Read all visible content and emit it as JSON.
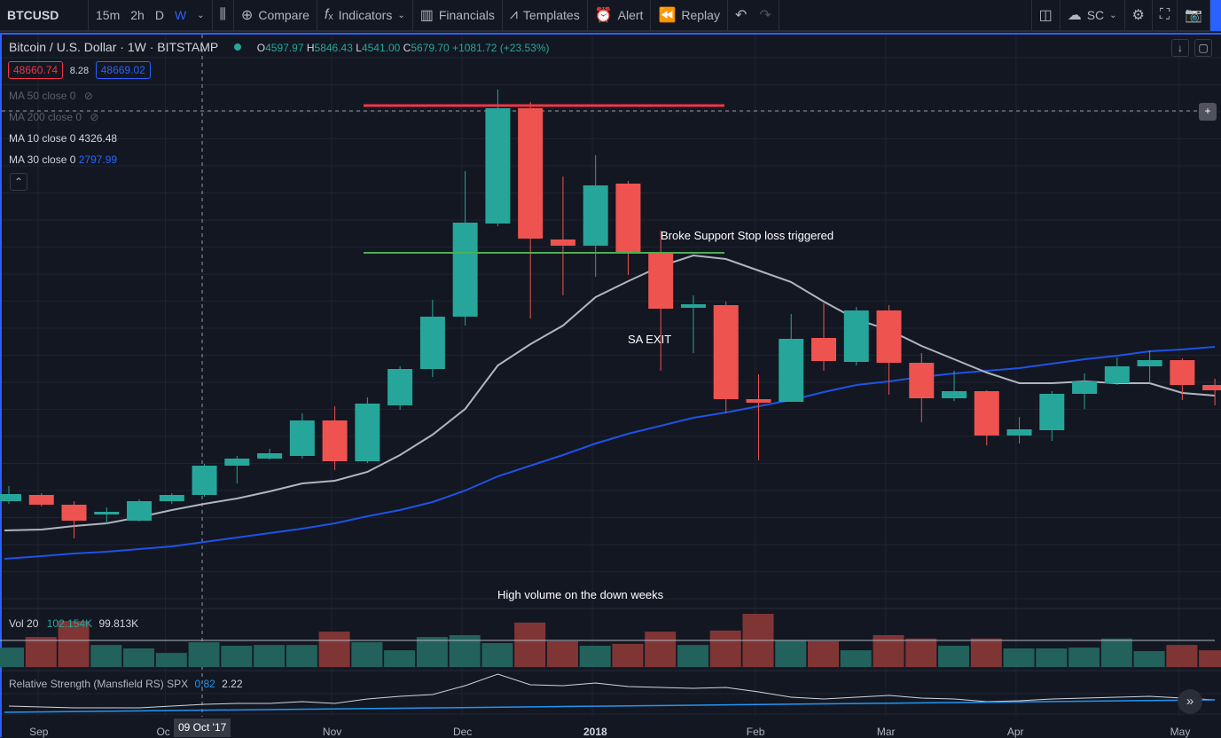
{
  "toolbar": {
    "symbol": "BTCUSD",
    "intervals": [
      "15m",
      "2h",
      "D",
      "W"
    ],
    "active_interval": "W",
    "compare": "Compare",
    "indicators": "Indicators",
    "financials": "Financials",
    "templates": "Templates",
    "alert": "Alert",
    "replay": "Replay",
    "layout_name": "SC"
  },
  "header": {
    "title": "Bitcoin / U.S. Dollar · 1W · BITSTAMP",
    "o_label": "O",
    "o": "4597.97",
    "h_label": "H",
    "h": "5846.43",
    "l_label": "L",
    "l": "4541.00",
    "c_label": "C",
    "c": "5679.70",
    "change": "+1081.72 (+23.53%)",
    "bid": "48660.74",
    "spread": "8.28",
    "ask": "48669.02"
  },
  "indicators": [
    {
      "label": "MA 50 close 0",
      "hidden": true
    },
    {
      "label": "MA 200 close 0",
      "hidden": true
    },
    {
      "label": "MA 10 close 0",
      "value": "4326.48"
    },
    {
      "label": "MA 30 close 0",
      "value": "2797.99"
    }
  ],
  "volume": {
    "label": "Vol 20",
    "value": "102.154K",
    "ma": "99.813K"
  },
  "rs": {
    "label": "Relative Strength (Mansfield RS) SPX",
    "value": "0.82",
    "ma": "2.22"
  },
  "annotations": {
    "support": "Broke Support Stop loss triggered",
    "exit": "SA EXIT",
    "volume_note": "High volume on the down weeks"
  },
  "crosshair": {
    "date": "09 Oct '17"
  },
  "colors": {
    "up": "#26a69a",
    "down": "#ef5350",
    "ma10": "#b2b5be",
    "ma30": "#1e53e5",
    "resistance": "#f23645",
    "support": "#4caf50"
  },
  "chart_data": {
    "type": "candlestick",
    "timeframe": "1W",
    "x_labels": [
      "Sep",
      "Oc",
      "Nov",
      "Dec",
      "2018",
      "Feb",
      "Mar",
      "Apr",
      "May"
    ],
    "x_label_index": [
      0.9,
      4.8,
      9.9,
      13.9,
      17.9,
      22.9,
      26.9,
      30.9,
      35.9
    ],
    "resistance": 17430,
    "support": 12450,
    "ohlc": [
      [
        4050,
        4560,
        3960,
        4290
      ],
      [
        4260,
        4320,
        3870,
        3930
      ],
      [
        3930,
        4050,
        2790,
        3390
      ],
      [
        3600,
        3840,
        3270,
        3690
      ],
      [
        3390,
        4110,
        3360,
        4050
      ],
      [
        4050,
        4320,
        3960,
        4260
      ],
      [
        4260,
        5310,
        4200,
        5250
      ],
      [
        5250,
        5580,
        4650,
        5490
      ],
      [
        5490,
        5820,
        5460,
        5670
      ],
      [
        5580,
        7020,
        5490,
        6780
      ],
      [
        6780,
        7260,
        5100,
        5400
      ],
      [
        5400,
        7560,
        5340,
        7350
      ],
      [
        7290,
        8610,
        7140,
        8520
      ],
      [
        8520,
        10860,
        8250,
        10290
      ],
      [
        10290,
        15210,
        9990,
        13470
      ],
      [
        13440,
        17970,
        13350,
        17340
      ],
      [
        17340,
        17550,
        10230,
        12930
      ],
      [
        12900,
        15030,
        11010,
        12690
      ],
      [
        12690,
        15750,
        11640,
        14730
      ],
      [
        14790,
        14880,
        11700,
        12480
      ],
      [
        12450,
        13200,
        8460,
        10560
      ],
      [
        10590,
        11010,
        9060,
        10710
      ],
      [
        10680,
        10800,
        7020,
        7500
      ],
      [
        7500,
        8340,
        5430,
        7380
      ],
      [
        7410,
        10380,
        7410,
        9540
      ],
      [
        9570,
        10740,
        8460,
        8790
      ],
      [
        8760,
        10620,
        8640,
        10500
      ],
      [
        10500,
        10680,
        7650,
        8730
      ],
      [
        8730,
        9060,
        6720,
        7530
      ],
      [
        7530,
        8460,
        7440,
        7770
      ],
      [
        7770,
        7800,
        5940,
        6270
      ],
      [
        6270,
        6900,
        6000,
        6480
      ],
      [
        6450,
        7770,
        6090,
        7680
      ],
      [
        7680,
        8370,
        7170,
        8100
      ],
      [
        8040,
        8910,
        7980,
        8610
      ],
      [
        8610,
        9150,
        8040,
        8820
      ],
      [
        8820,
        8880,
        7470,
        7980
      ],
      [
        7980,
        8190,
        7290,
        7800
      ]
    ],
    "ma10": [
      3060,
      3090,
      3210,
      3300,
      3510,
      3750,
      3960,
      4140,
      4380,
      4650,
      4740,
      5040,
      5610,
      6300,
      7170,
      8640,
      9360,
      9990,
      10950,
      11490,
      12000,
      12360,
      12240,
      11850,
      11460,
      10800,
      10200,
      9840,
      9300,
      8850,
      8400,
      8040,
      8040,
      8100,
      8040,
      8040,
      7710,
      7620
    ],
    "ma30": [
      2100,
      2190,
      2280,
      2340,
      2430,
      2520,
      2670,
      2820,
      2970,
      3120,
      3300,
      3540,
      3750,
      4020,
      4410,
      4890,
      5250,
      5610,
      6000,
      6330,
      6600,
      6870,
      7050,
      7260,
      7470,
      7740,
      7980,
      8100,
      8250,
      8370,
      8460,
      8550,
      8700,
      8850,
      8970,
      9120,
      9180,
      9270
    ],
    "volume_k": [
      73,
      113,
      173,
      83,
      70,
      53,
      93,
      80,
      83,
      83,
      133,
      93,
      63,
      113,
      120,
      90,
      167,
      97,
      80,
      87,
      133,
      83,
      137,
      200,
      100,
      97,
      63,
      120,
      107,
      80,
      107,
      70,
      70,
      73,
      107,
      60,
      83,
      63
    ],
    "volume_ma_k": 100,
    "rs_line": [
      0.9,
      0.8,
      0.7,
      0.7,
      0.7,
      0.9,
      1.1,
      1.2,
      1.2,
      1.4,
      1.2,
      1.7,
      2.0,
      2.2,
      3.2,
      4.5,
      3.3,
      3.2,
      3.5,
      3.1,
      3.0,
      2.9,
      3.0,
      2.5,
      1.9,
      1.7,
      1.9,
      2.1,
      1.8,
      1.7,
      1.4,
      1.5,
      1.7,
      1.8,
      1.9,
      2.0,
      1.8,
      1.6
    ],
    "rs_ma": [
      0.2,
      1.6
    ]
  }
}
